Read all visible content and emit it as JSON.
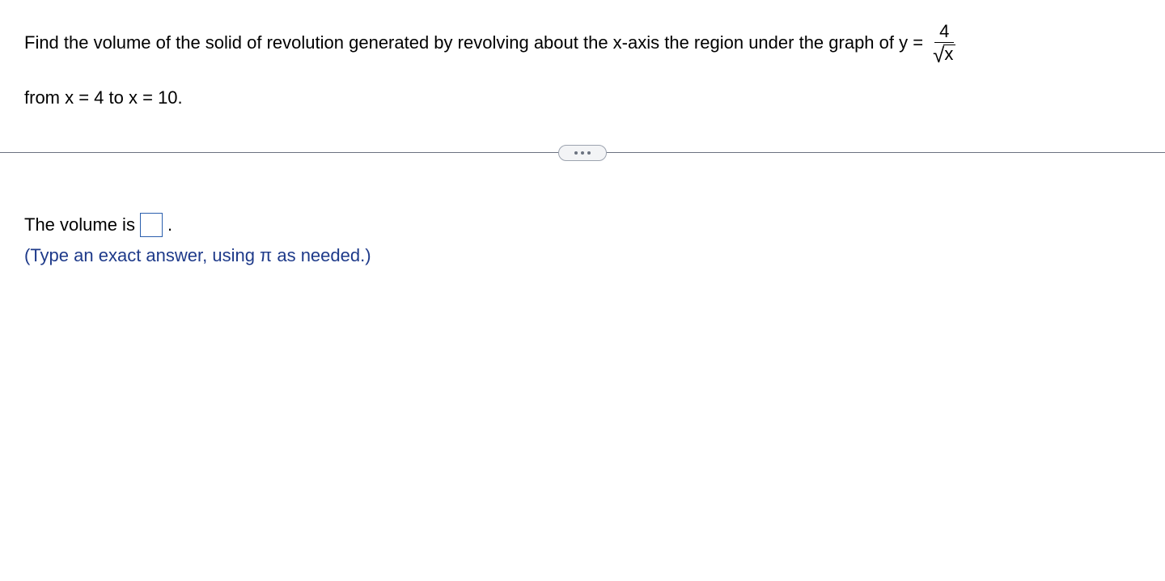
{
  "question": {
    "text_before_fraction": "Find the volume of the solid of revolution generated by revolving about the x-axis the region under the graph of y =",
    "fraction": {
      "numerator": "4",
      "sqrt_arg": "x"
    },
    "line2": "from x = 4 to x = 10."
  },
  "answer": {
    "prefix": "The volume is",
    "suffix": ".",
    "instruction": "(Type an exact answer, using π as needed.)"
  },
  "colors": {
    "text": "#000000",
    "instruction": "#1e3a8a",
    "input_border": "#2b5fad",
    "divider": "#6b7280",
    "pill_bg": "#f3f4f6",
    "pill_border": "#9ca3af"
  },
  "typography": {
    "body_fontsize": 22,
    "font_family": "Arial"
  }
}
